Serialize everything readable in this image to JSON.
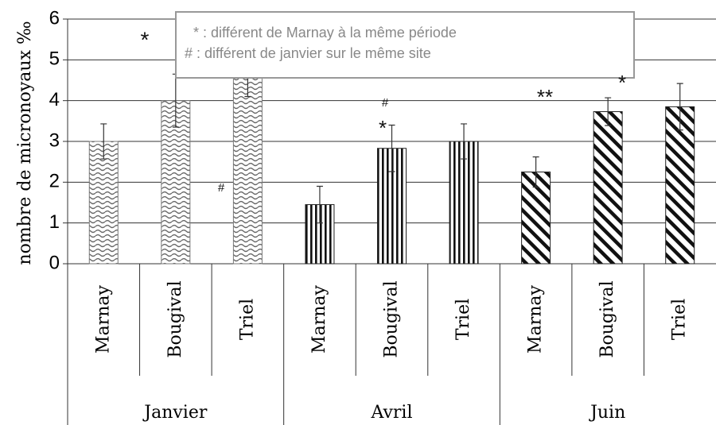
{
  "chart_data": {
    "type": "grouped-bar",
    "y_label": "nombre de micronoyaux ‰",
    "ylim": [
      0,
      6
    ],
    "yticks": [
      0,
      1,
      2,
      3,
      4,
      5,
      6
    ],
    "grid": true,
    "groups": [
      {
        "name": "Janvier",
        "pattern": "wave",
        "categories": [
          "Marnay",
          "Bougival",
          "Triel"
        ],
        "values": [
          3.0,
          4.0,
          4.6
        ],
        "errors": [
          0.43,
          0.65,
          0.5
        ]
      },
      {
        "name": "Avril",
        "pattern": "vertical",
        "categories": [
          "Marnay",
          "Bougival",
          "Triel"
        ],
        "values": [
          1.45,
          2.83,
          3.0
        ],
        "errors": [
          0.45,
          0.57,
          0.43
        ]
      },
      {
        "name": "Juin",
        "pattern": "diagonal",
        "categories": [
          "Marnay",
          "Bougival",
          "Triel"
        ],
        "values": [
          2.25,
          3.73,
          3.85
        ],
        "errors": [
          0.37,
          0.34,
          0.57
        ]
      }
    ],
    "legend_notes": [
      "* : différent de Marnay à la même période",
      "# : différent de janvier sur le même site"
    ],
    "annotations": [
      "*",
      "#",
      "#",
      "*",
      "**",
      "*"
    ]
  }
}
